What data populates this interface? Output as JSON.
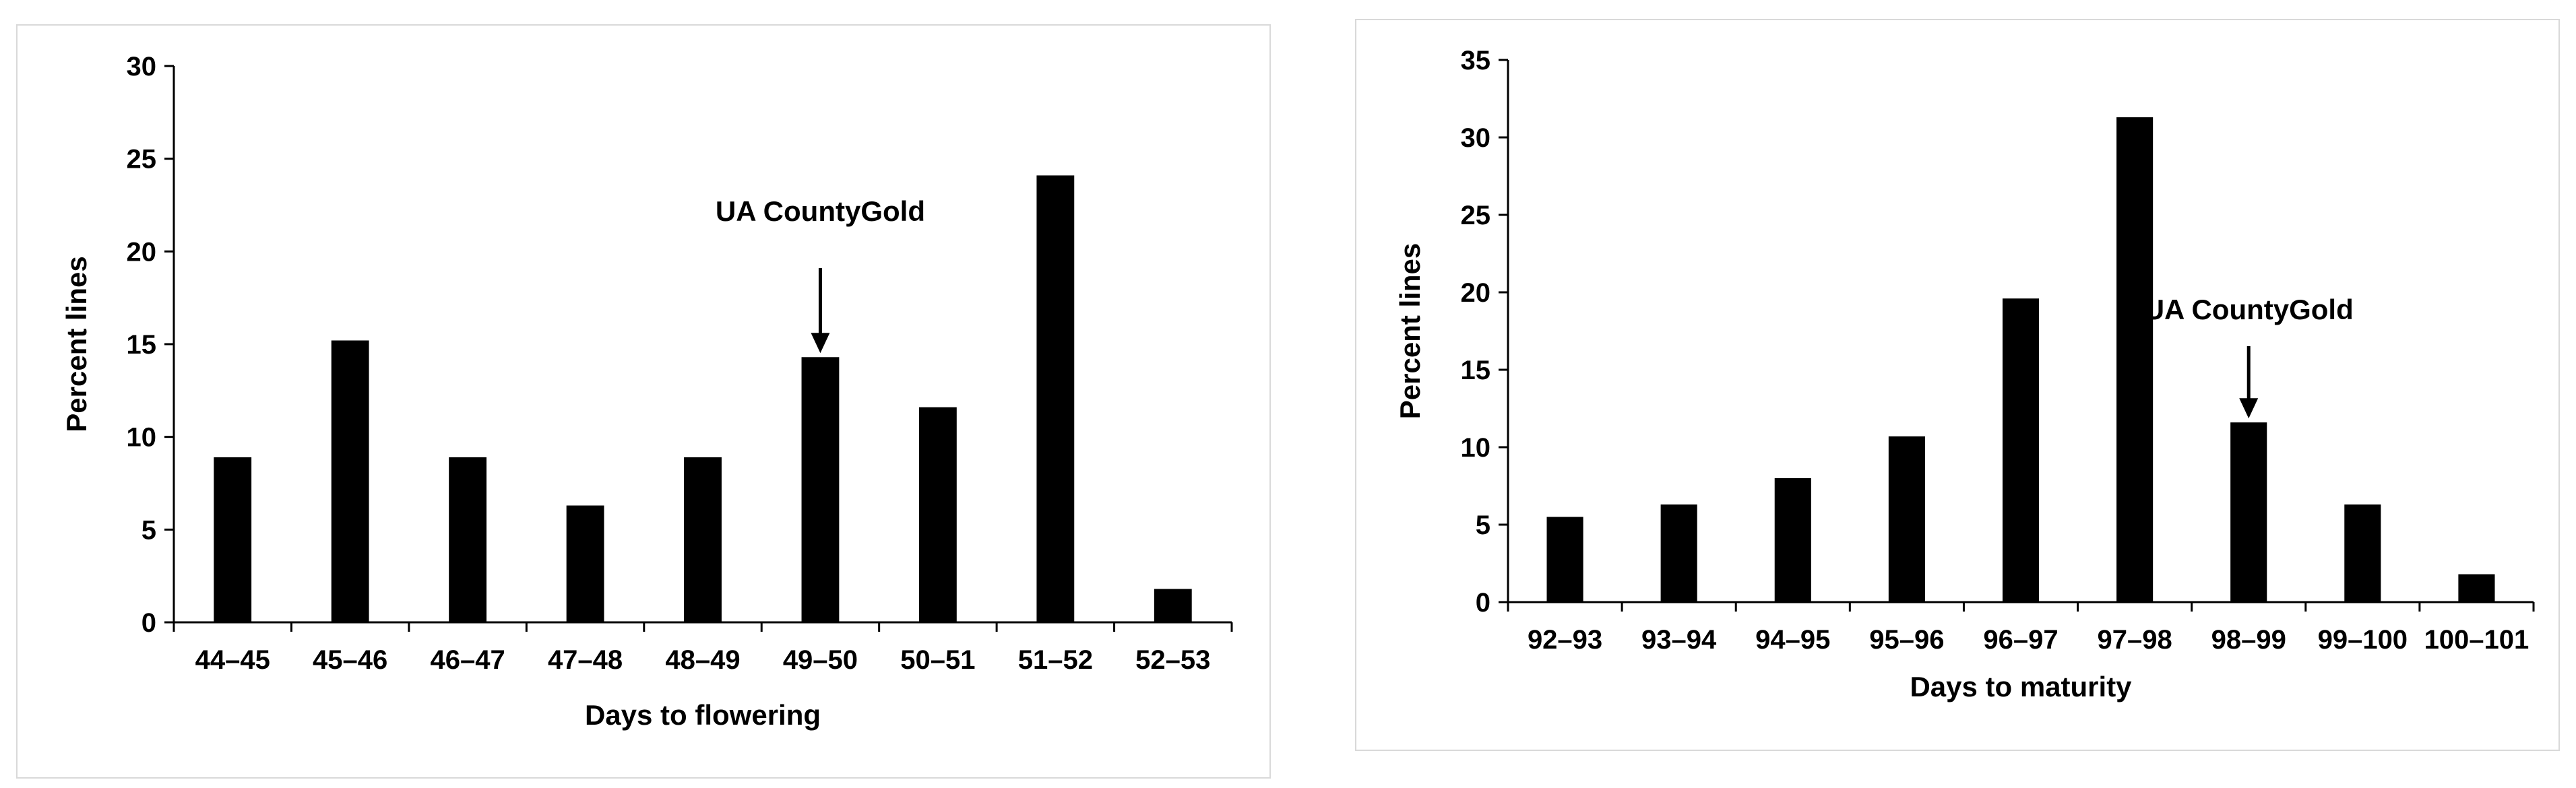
{
  "charts": [
    {
      "id": "flowering",
      "chart_data": {
        "type": "bar",
        "categories": [
          "44–45",
          "45–46",
          "46–47",
          "47–48",
          "48–49",
          "49–50",
          "50–51",
          "51–52",
          "52–53"
        ],
        "values": [
          8.9,
          15.2,
          8.9,
          6.3,
          8.9,
          14.3,
          11.6,
          24.1,
          1.8
        ],
        "xlabel": "Days to flowering",
        "ylabel": "Percent lines",
        "ylim": [
          0,
          30
        ],
        "yticks": [
          0,
          5,
          10,
          15,
          20,
          25,
          30
        ],
        "bar_color": "#000000",
        "grid": false,
        "annotation": {
          "text": "UA CountyGold",
          "category": "49–50",
          "marker": "down-arrow"
        }
      }
    },
    {
      "id": "maturity",
      "chart_data": {
        "type": "bar",
        "categories": [
          "92–93",
          "93–94",
          "94–95",
          "95–96",
          "96–97",
          "97–98",
          "98–99",
          "99–100",
          "100–101"
        ],
        "values": [
          5.5,
          6.3,
          8.0,
          10.7,
          19.6,
          31.3,
          11.6,
          6.3,
          1.8
        ],
        "xlabel": "Days to maturity",
        "ylabel": "Percent lines",
        "ylim": [
          0,
          35
        ],
        "yticks": [
          0,
          5,
          10,
          15,
          20,
          25,
          30,
          35
        ],
        "bar_color": "#000000",
        "grid": false,
        "annotation": {
          "text": "UA CountyGold",
          "category": "98–99",
          "marker": "down-arrow"
        }
      }
    }
  ]
}
